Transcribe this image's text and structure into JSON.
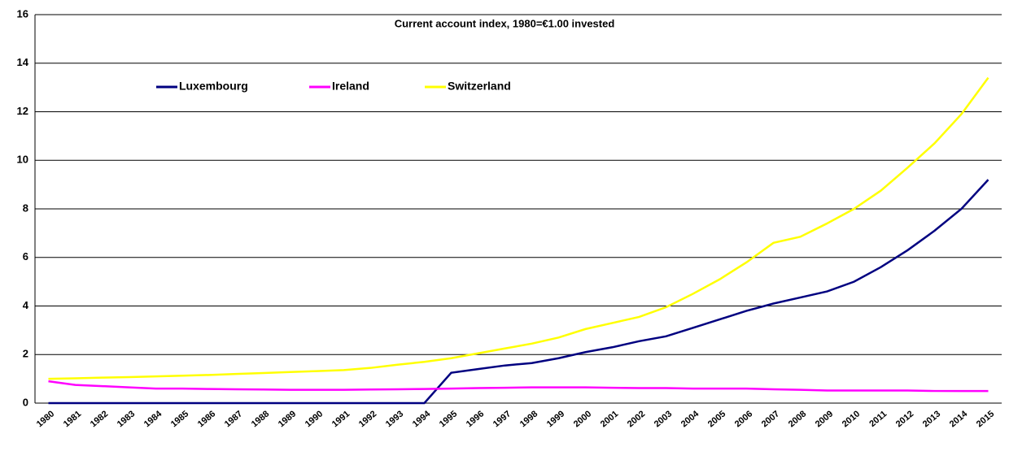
{
  "chart_data": {
    "type": "line",
    "title": "Current account index, 1980=€1.00 invested",
    "categories": [
      "1980",
      "1981",
      "1982",
      "1983",
      "1984",
      "1985",
      "1986",
      "1987",
      "1988",
      "1989",
      "1990",
      "1991",
      "1992",
      "1993",
      "1994",
      "1995",
      "1996",
      "1997",
      "1998",
      "1999",
      "2000",
      "2001",
      "2002",
      "2003",
      "2004",
      "2005",
      "2006",
      "2007",
      "2008",
      "2009",
      "2010",
      "2011",
      "2012",
      "2013",
      "2014",
      "2015"
    ],
    "series": [
      {
        "name": "Luxembourg",
        "color": "#000080",
        "values": [
          0,
          0,
          0,
          0,
          0,
          0,
          0,
          0,
          0,
          0,
          0,
          0,
          0,
          0,
          0,
          1.25,
          1.4,
          1.55,
          1.65,
          1.85,
          2.1,
          2.3,
          2.55,
          2.75,
          3.1,
          3.45,
          3.8,
          4.1,
          4.35,
          4.6,
          5.0,
          5.6,
          6.3,
          7.1,
          8.0,
          9.2
        ]
      },
      {
        "name": "Ireland",
        "color": "#ff00ff",
        "values": [
          0.9,
          0.75,
          0.7,
          0.65,
          0.6,
          0.6,
          0.58,
          0.57,
          0.56,
          0.55,
          0.55,
          0.55,
          0.56,
          0.57,
          0.58,
          0.6,
          0.62,
          0.63,
          0.65,
          0.65,
          0.65,
          0.63,
          0.62,
          0.62,
          0.6,
          0.6,
          0.6,
          0.57,
          0.55,
          0.52,
          0.52,
          0.52,
          0.52,
          0.5,
          0.5,
          0.5
        ]
      },
      {
        "name": "Switzerland",
        "color": "#ffff00",
        "values": [
          1.0,
          1.02,
          1.05,
          1.07,
          1.1,
          1.13,
          1.16,
          1.2,
          1.24,
          1.28,
          1.32,
          1.36,
          1.45,
          1.58,
          1.7,
          1.85,
          2.05,
          2.25,
          2.45,
          2.7,
          3.05,
          3.3,
          3.55,
          3.95,
          4.5,
          5.1,
          5.8,
          6.6,
          6.85,
          7.4,
          8.0,
          8.75,
          9.7,
          10.7,
          11.9,
          13.4
        ]
      }
    ],
    "ylim": [
      0,
      16
    ],
    "yticks": [
      0,
      2,
      4,
      6,
      8,
      10,
      12,
      14,
      16
    ],
    "grid": true
  }
}
